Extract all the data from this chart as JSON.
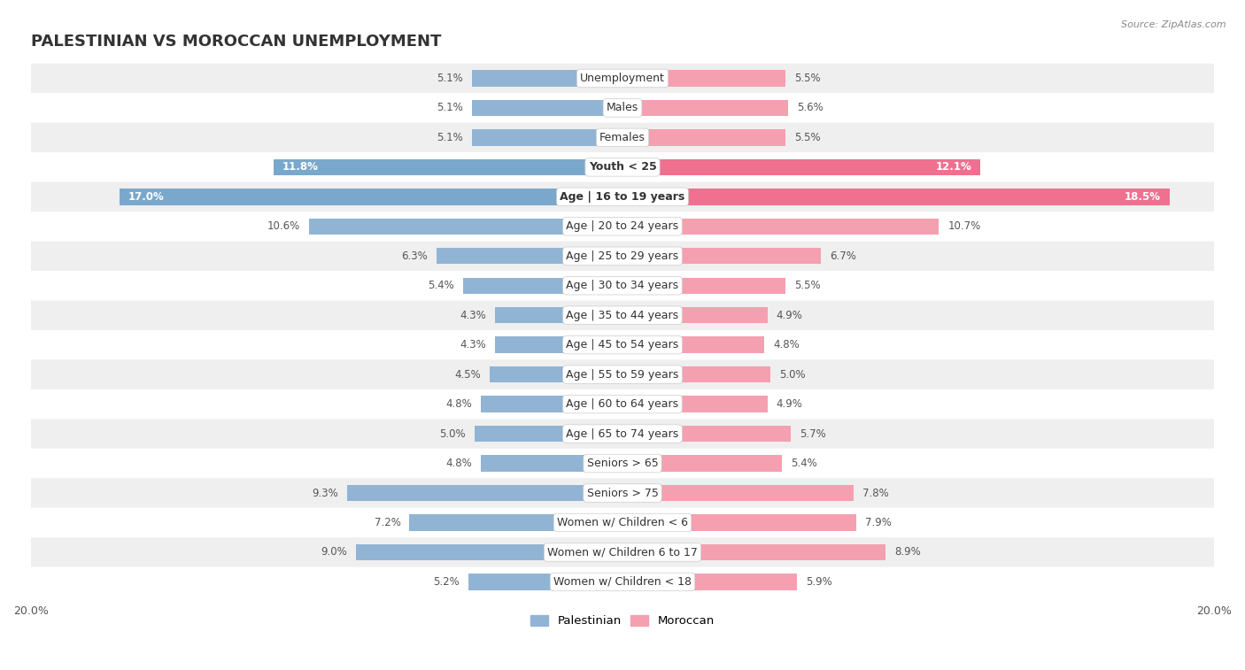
{
  "title": "PALESTINIAN VS MOROCCAN UNEMPLOYMENT",
  "source": "Source: ZipAtlas.com",
  "categories": [
    "Unemployment",
    "Males",
    "Females",
    "Youth < 25",
    "Age | 16 to 19 years",
    "Age | 20 to 24 years",
    "Age | 25 to 29 years",
    "Age | 30 to 34 years",
    "Age | 35 to 44 years",
    "Age | 45 to 54 years",
    "Age | 55 to 59 years",
    "Age | 60 to 64 years",
    "Age | 65 to 74 years",
    "Seniors > 65",
    "Seniors > 75",
    "Women w/ Children < 6",
    "Women w/ Children 6 to 17",
    "Women w/ Children < 18"
  ],
  "palestinian": [
    5.1,
    5.1,
    5.1,
    11.8,
    17.0,
    10.6,
    6.3,
    5.4,
    4.3,
    4.3,
    4.5,
    4.8,
    5.0,
    4.8,
    9.3,
    7.2,
    9.0,
    5.2
  ],
  "moroccan": [
    5.5,
    5.6,
    5.5,
    12.1,
    18.5,
    10.7,
    6.7,
    5.5,
    4.9,
    4.8,
    5.0,
    4.9,
    5.7,
    5.4,
    7.8,
    7.9,
    8.9,
    5.9
  ],
  "palestinian_color": "#92b4d4",
  "moroccan_color": "#f4a0b0",
  "palestinian_color_highlight": "#7aa8cc",
  "moroccan_color_highlight": "#f07090",
  "row_bg_even": "#efefef",
  "row_bg_odd": "#ffffff",
  "x_max": 20.0,
  "legend_palestinian": "Palestinian",
  "legend_moroccan": "Moroccan",
  "title_fontsize": 13,
  "label_fontsize": 9,
  "value_fontsize": 8.5,
  "highlight_indices": [
    3,
    4
  ],
  "value_color_normal": "#555555",
  "value_color_highlight_pal": "#ffffff",
  "value_color_highlight_mor": "#ffffff"
}
